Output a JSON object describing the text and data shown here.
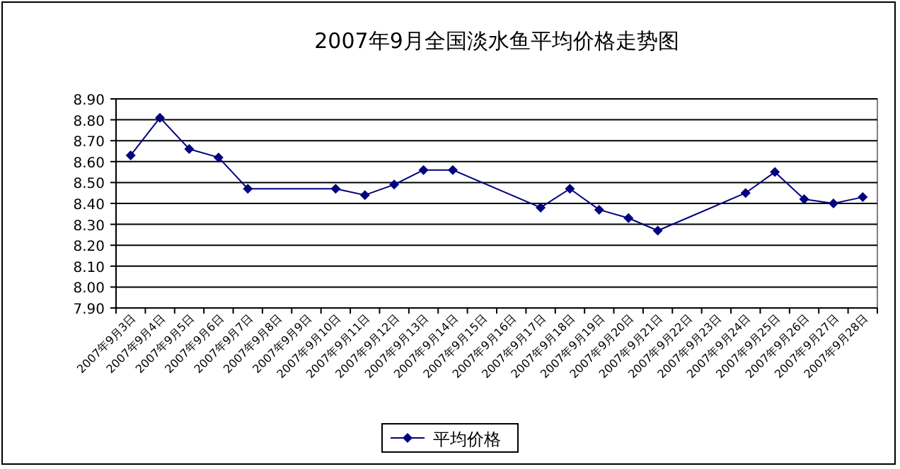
{
  "chart_data": {
    "type": "line",
    "title": "2007年9月全国淡水鱼平均价格走势图",
    "categories": [
      "2007年9月3日",
      "2007年9月4日",
      "2007年9月5日",
      "2007年9月6日",
      "2007年9月7日",
      "2007年9月8日",
      "2007年9月9日",
      "2007年9月10日",
      "2007年9月11日",
      "2007年9月12日",
      "2007年9月13日",
      "2007年9月14日",
      "2007年9月15日",
      "2007年9月16日",
      "2007年9月17日",
      "2007年9月18日",
      "2007年9月19日",
      "2007年9月20日",
      "2007年9月21日",
      "2007年9月22日",
      "2007年9月23日",
      "2007年9月24日",
      "2007年9月25日",
      "2007年9月26日",
      "2007年9月27日",
      "2007年9月28日"
    ],
    "series": [
      {
        "name": "平均价格",
        "color": "#000080",
        "values": [
          8.63,
          8.81,
          8.66,
          8.62,
          8.47,
          null,
          null,
          8.47,
          8.44,
          8.49,
          8.56,
          8.56,
          null,
          null,
          8.38,
          8.47,
          8.37,
          8.33,
          8.27,
          null,
          null,
          8.45,
          8.55,
          8.42,
          8.4,
          8.43
        ]
      }
    ],
    "ylim": [
      7.9,
      8.9
    ],
    "yticks": [
      {
        "value": 7.9,
        "label": "7.90"
      },
      {
        "value": 8.0,
        "label": "8.00"
      },
      {
        "value": 8.1,
        "label": "8.10"
      },
      {
        "value": 8.2,
        "label": "8.20"
      },
      {
        "value": 8.3,
        "label": "8.30"
      },
      {
        "value": 8.4,
        "label": "8.40"
      },
      {
        "value": 8.5,
        "label": "8.50"
      },
      {
        "value": 8.6,
        "label": "8.60"
      },
      {
        "value": 8.7,
        "label": "8.70"
      },
      {
        "value": 8.8,
        "label": "8.80"
      },
      {
        "value": 8.9,
        "label": "8.90"
      }
    ],
    "grid": "y",
    "legend": "bottom",
    "marker": "diamond",
    "line_style": "solid"
  }
}
